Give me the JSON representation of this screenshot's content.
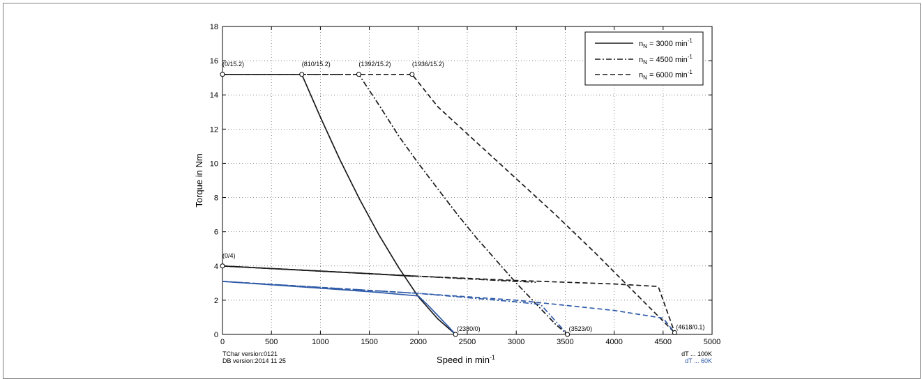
{
  "chart_data": {
    "type": "line",
    "xlabel": "Speed in min",
    "xlabel_sup": "-1",
    "ylabel": "Torque in Nm",
    "xlim": [
      0,
      5000
    ],
    "ylim": [
      0,
      18
    ],
    "xticks": [
      0,
      500,
      1000,
      1500,
      2000,
      2500,
      3000,
      3500,
      4000,
      4500,
      5000
    ],
    "yticks": [
      0,
      2,
      4,
      6,
      8,
      10,
      12,
      14,
      16,
      18
    ],
    "grid": true,
    "legend_position": "top-right",
    "legend": [
      {
        "prefix": "n",
        "sub": "N",
        "text": " = 3000 min",
        "sup": "-1",
        "style": "solid"
      },
      {
        "prefix": "n",
        "sub": "N",
        "text": " = 4500 min",
        "sup": "-1",
        "style": "dashdot"
      },
      {
        "prefix": "n",
        "sub": "N",
        "text": " = 6000 min",
        "sup": "-1",
        "style": "dashed"
      }
    ],
    "colors": {
      "dT100K": "#1a1a1a",
      "dT60K": "#2e5aa8"
    },
    "series": [
      {
        "name": "n_N = 3000 min-1 (dT 100K)",
        "color": "#1a1a1a",
        "style": "solid",
        "x": [
          0,
          810,
          1000,
          1200,
          1400,
          1600,
          1800,
          2000,
          2200,
          2380
        ],
        "y": [
          15.2,
          15.2,
          12.7,
          10.2,
          7.9,
          5.8,
          3.9,
          2.2,
          0.9,
          0
        ]
      },
      {
        "name": "n_N = 4500 min-1 (dT 100K)",
        "color": "#1a1a1a",
        "style": "dashdot",
        "x": [
          0,
          1392,
          1600,
          1800,
          2000,
          2200,
          2400,
          2600,
          2800,
          3000,
          3200,
          3400,
          3523
        ],
        "y": [
          15.2,
          15.2,
          13.4,
          11.6,
          10.0,
          8.5,
          7.0,
          5.6,
          4.3,
          3.0,
          1.8,
          0.6,
          0
        ]
      },
      {
        "name": "n_N = 6000 min-1 (dT 100K)",
        "color": "#1a1a1a",
        "style": "dashed",
        "x": [
          0,
          1936,
          2200,
          2600,
          3000,
          3400,
          3800,
          4200,
          4618
        ],
        "y": [
          15.2,
          15.2,
          13.3,
          11.2,
          9.1,
          7.0,
          4.8,
          2.5,
          0.1
        ]
      },
      {
        "name": "dT 100K lower 3000",
        "color": "#1a1a1a",
        "style": "solid",
        "x": [
          0,
          500,
          1000,
          1500,
          1950
        ],
        "y": [
          4.0,
          3.85,
          3.7,
          3.55,
          3.4
        ]
      },
      {
        "name": "dT 100K lower 4500",
        "color": "#1a1a1a",
        "style": "dashdot",
        "x": [
          0,
          1000,
          2000,
          3000,
          3200
        ],
        "y": [
          4.0,
          3.7,
          3.4,
          3.1,
          3.05
        ]
      },
      {
        "name": "dT 100K lower 6000",
        "color": "#1a1a1a",
        "style": "dashed",
        "x": [
          0,
          1000,
          2000,
          3000,
          4000,
          4450,
          4618
        ],
        "y": [
          4.0,
          3.7,
          3.4,
          3.15,
          2.95,
          2.8,
          0.1
        ]
      },
      {
        "name": "n_N = 3000 min-1 (dT 60K)",
        "color": "#2e5aa8",
        "style": "solid",
        "x": [
          0,
          500,
          1000,
          1500,
          2000,
          2100,
          2200,
          2300,
          2380
        ],
        "y": [
          3.1,
          2.9,
          2.7,
          2.5,
          2.25,
          1.7,
          1.1,
          0.5,
          0
        ]
      },
      {
        "name": "n_N = 4500 min-1 (dT 60K)",
        "color": "#2e5aa8",
        "style": "dashdot",
        "x": [
          0,
          1000,
          2000,
          2500,
          3000,
          3250,
          3523
        ],
        "y": [
          3.1,
          2.75,
          2.4,
          2.15,
          1.9,
          1.75,
          0
        ]
      },
      {
        "name": "n_N = 6000 min-1 (dT 60K)",
        "color": "#2e5aa8",
        "style": "dashed",
        "x": [
          0,
          1000,
          2000,
          3000,
          4000,
          4500,
          4618
        ],
        "y": [
          3.1,
          2.75,
          2.4,
          2.0,
          1.4,
          0.95,
          0.1
        ]
      }
    ],
    "markers": [
      {
        "x": 0,
        "y": 15.2,
        "label": "(0/15.2)"
      },
      {
        "x": 810,
        "y": 15.2,
        "label": "(810/15.2)"
      },
      {
        "x": 1392,
        "y": 15.2,
        "label": "(1392/15.2)"
      },
      {
        "x": 1936,
        "y": 15.2,
        "label": "(1936/15.2)"
      },
      {
        "x": 0,
        "y": 4,
        "label": "(0/4)"
      },
      {
        "x": 2380,
        "y": 0,
        "label": "(2380/0)"
      },
      {
        "x": 3523,
        "y": 0,
        "label": "(3523/0)"
      },
      {
        "x": 4618,
        "y": 0.1,
        "label": "(4618/0.1)"
      }
    ]
  },
  "footer": {
    "tchar": "TChar version:0121",
    "db": "DB version:2014 11 25",
    "dt100": "dT ... 100K",
    "dt60": "dT ... 60K"
  }
}
